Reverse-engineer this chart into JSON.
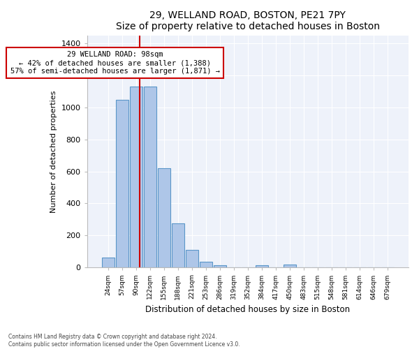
{
  "title": "29, WELLAND ROAD, BOSTON, PE21 7PY",
  "subtitle": "Size of property relative to detached houses in Boston",
  "xlabel": "Distribution of detached houses by size in Boston",
  "ylabel": "Number of detached properties",
  "categories": [
    "24sqm",
    "57sqm",
    "90sqm",
    "122sqm",
    "155sqm",
    "188sqm",
    "221sqm",
    "253sqm",
    "286sqm",
    "319sqm",
    "352sqm",
    "384sqm",
    "417sqm",
    "450sqm",
    "483sqm",
    "515sqm",
    "548sqm",
    "581sqm",
    "614sqm",
    "646sqm",
    "679sqm"
  ],
  "values": [
    60,
    1045,
    1130,
    1130,
    620,
    275,
    110,
    35,
    15,
    0,
    0,
    15,
    0,
    20,
    0,
    0,
    0,
    0,
    0,
    0,
    0
  ],
  "bar_color": "#aec6e8",
  "bar_edgecolor": "#5a96c8",
  "vline_color": "#cc0000",
  "annotation_line1": "29 WELLAND ROAD: 98sqm",
  "annotation_line2": "← 42% of detached houses are smaller (1,388)",
  "annotation_line3": "57% of semi-detached houses are larger (1,871) →",
  "annotation_box_color": "#ffffff",
  "annotation_box_edgecolor": "#cc0000",
  "ylim": [
    0,
    1450
  ],
  "yticks": [
    0,
    200,
    400,
    600,
    800,
    1000,
    1200,
    1400
  ],
  "bg_color": "#eef2fa",
  "footer1": "Contains HM Land Registry data © Crown copyright and database right 2024.",
  "footer2": "Contains public sector information licensed under the Open Government Licence v3.0.",
  "title_fontsize": 10,
  "subtitle_fontsize": 9,
  "xlabel_fontsize": 8.5,
  "ylabel_fontsize": 8
}
